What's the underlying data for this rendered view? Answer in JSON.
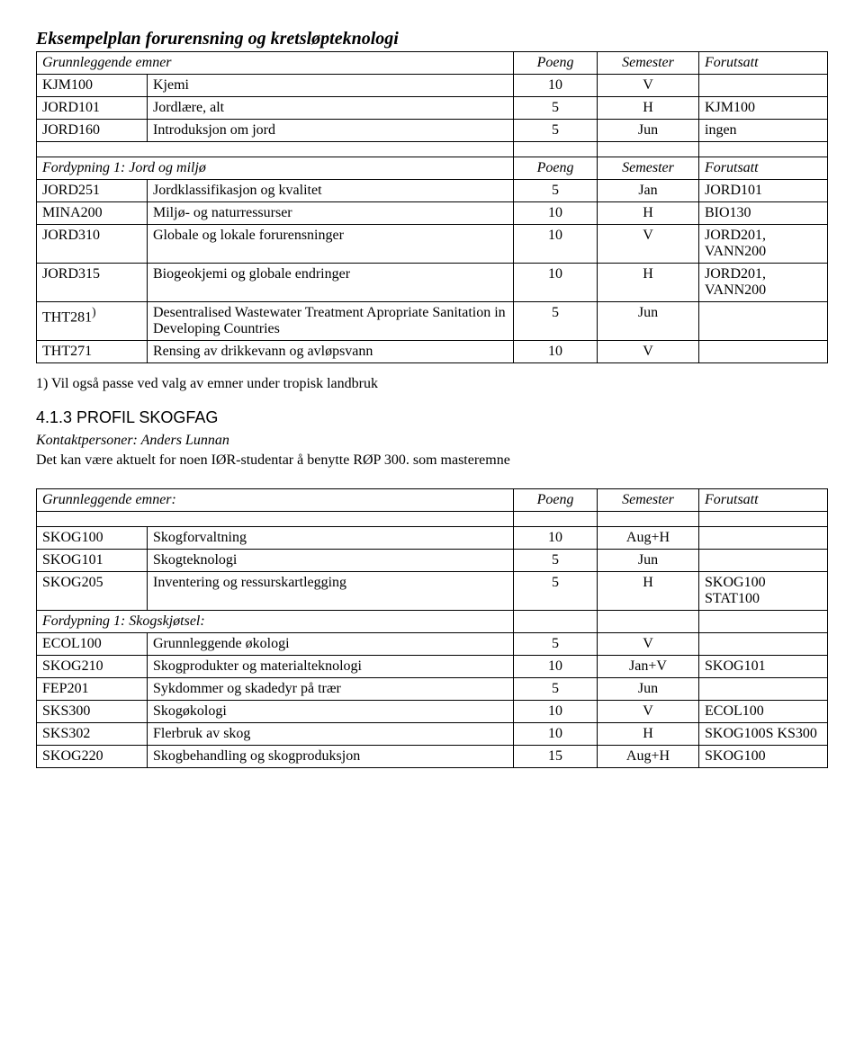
{
  "title": "Eksempelplan forurensning og kretsløpteknologi",
  "table1": {
    "header": [
      "Grunnleggende emner",
      "Poeng",
      "Semester",
      "Forutsatt"
    ],
    "rows": [
      [
        "KJM100",
        "Kjemi",
        "10",
        "V",
        ""
      ],
      [
        "JORD101",
        "Jordlære, alt",
        "5",
        "H",
        "KJM100"
      ],
      [
        "JORD160",
        "Introduksjon om jord",
        "5",
        "Jun",
        "ingen"
      ]
    ]
  },
  "table2": {
    "header": [
      "Fordypning 1: Jord og miljø",
      "Poeng",
      "Semester",
      "Forutsatt"
    ],
    "rows": [
      [
        "JORD251",
        "Jordklassifikasjon og kvalitet",
        "5",
        "Jan",
        "JORD101"
      ],
      [
        "MINA200",
        "Miljø- og naturressurser",
        "10",
        "H",
        "BIO130"
      ],
      [
        "JORD310",
        "Globale og lokale forurensninger",
        "10",
        "V",
        "JORD201, VANN200"
      ],
      [
        "JORD315",
        "Biogeokjemi og globale endringer",
        "10",
        "H",
        "JORD201, VANN200"
      ],
      [
        "THT281",
        "Desentralised Wastewater Treatment Apropriate Sanitation in Developing Countries",
        "5",
        "Jun",
        ""
      ],
      [
        "THT271",
        "Rensing av drikkevann og avløpsvann",
        "10",
        "V",
        ""
      ]
    ],
    "tht281_sup": ")"
  },
  "footnote1": "1) Vil også passe ved valg av emner under tropisk landbruk",
  "section2": {
    "heading": "4.1.3 PROFIL SKOGFAG",
    "contact": "Kontaktpersoner: Anders Lunnan",
    "note": "Det kan være aktuelt for noen IØR-studentar å  benytte  RØP 300. som masteremne"
  },
  "table3": {
    "header": [
      "Grunnleggende emner:",
      "Poeng",
      "Semester",
      "Forutsatt"
    ],
    "rows1": [
      [
        "SKOG100",
        "Skogforvaltning",
        "10",
        "Aug+H",
        ""
      ],
      [
        "SKOG101",
        "Skogteknologi",
        "5",
        "Jun",
        ""
      ],
      [
        "SKOG205",
        "Inventering og ressurskartlegging",
        "5",
        "H",
        "SKOG100 STAT100"
      ]
    ],
    "subhead": "Fordypning 1: Skogskjøtsel:",
    "rows2": [
      [
        "ECOL100",
        "Grunnleggende økologi",
        "5",
        "V",
        ""
      ],
      [
        "SKOG210",
        "Skogprodukter og materialteknologi",
        "10",
        "Jan+V",
        "SKOG101"
      ],
      [
        "FEP201",
        "Sykdommer og skadedyr på trær",
        "5",
        "Jun",
        ""
      ],
      [
        "SKS300",
        "Skogøkologi",
        "10",
        "V",
        "ECOL100"
      ],
      [
        "SKS302",
        "Flerbruk av skog",
        "10",
        "H",
        "SKOG100S KS300"
      ],
      [
        "SKOG220",
        "Skogbehandling og skogproduksjon",
        "15",
        "Aug+H",
        "SKOG100"
      ]
    ]
  }
}
